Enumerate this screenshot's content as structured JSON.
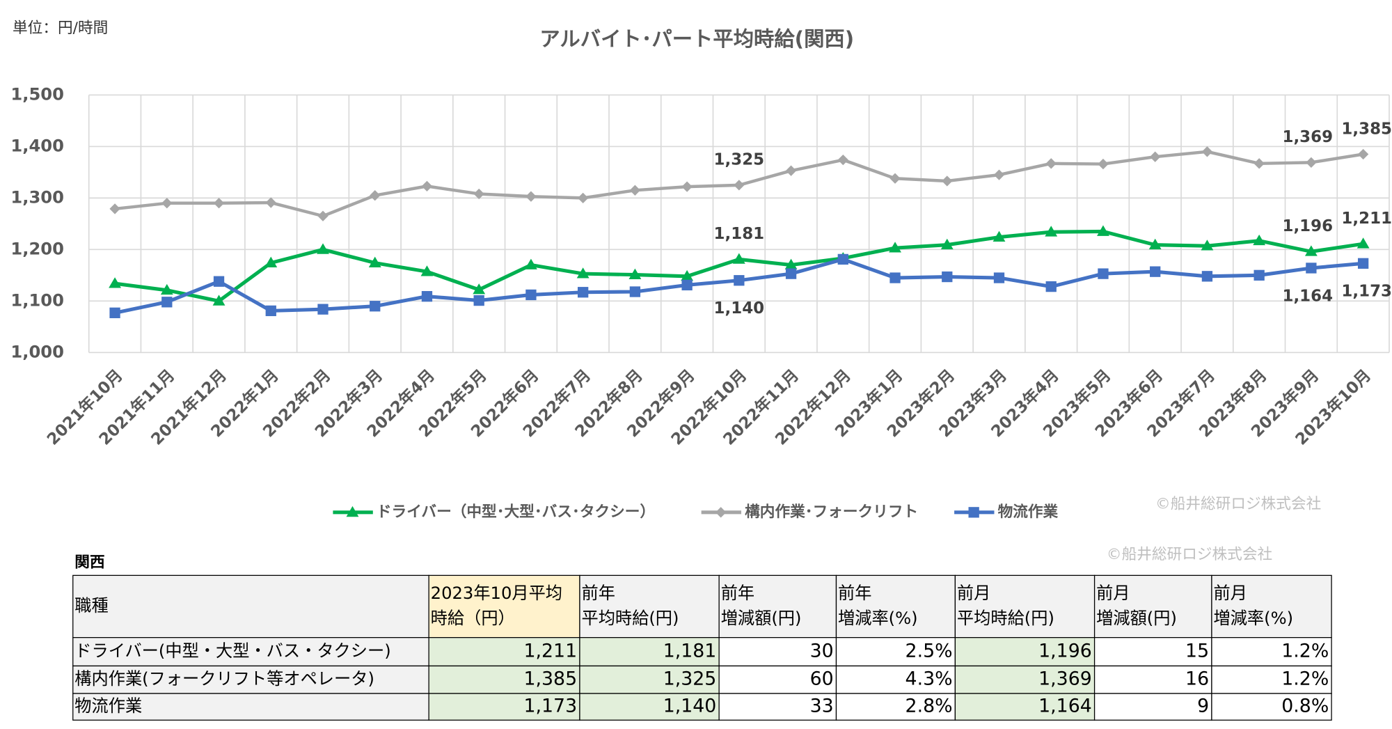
{
  "unit_note": "単位：円/時間",
  "chart_data": {
    "type": "line",
    "title": "アルバイト･パート平均時給(関西)",
    "categories": [
      "2021年10月",
      "2021年11月",
      "2021年12月",
      "2022年1月",
      "2022年2月",
      "2022年3月",
      "2022年4月",
      "2022年5月",
      "2022年6月",
      "2022年7月",
      "2022年8月",
      "2022年9月",
      "2022年10月",
      "2022年11月",
      "2022年12月",
      "2023年1月",
      "2023年2月",
      "2023年3月",
      "2023年4月",
      "2023年5月",
      "2023年6月",
      "2023年7月",
      "2023年8月",
      "2023年9月",
      "2023年10月"
    ],
    "ylim": [
      1000,
      1500
    ],
    "yticks": [
      {
        "value": 1000,
        "label": "1,000"
      },
      {
        "value": 1100,
        "label": "1,100"
      },
      {
        "value": 1200,
        "label": "1,200"
      },
      {
        "value": 1300,
        "label": "1,300"
      },
      {
        "value": 1400,
        "label": "1,400"
      },
      {
        "value": 1500,
        "label": "1,500"
      }
    ],
    "grid": true,
    "legend": "bottom",
    "series": [
      {
        "name": "ドライバー（中型･大型･バス･タクシー）",
        "color": "#00b050",
        "marker": "triangle",
        "values": [
          1134,
          1121,
          1100,
          1174,
          1200,
          1174,
          1157,
          1122,
          1170,
          1153,
          1151,
          1148,
          1181,
          1170,
          1183,
          1203,
          1209,
          1224,
          1234,
          1235,
          1209,
          1207,
          1217,
          1196,
          1211
        ],
        "value_labels": [
          null,
          null,
          null,
          null,
          null,
          null,
          null,
          null,
          null,
          null,
          null,
          null,
          "1,181",
          null,
          null,
          null,
          null,
          null,
          null,
          null,
          null,
          null,
          null,
          "1,196",
          "1,211"
        ]
      },
      {
        "name": "構内作業･フォークリフト",
        "color": "#a6a6a6",
        "marker": "diamond",
        "values": [
          1279,
          1290,
          1290,
          1291,
          1265,
          1305,
          1323,
          1308,
          1303,
          1300,
          1315,
          1322,
          1325,
          1353,
          1374,
          1338,
          1333,
          1345,
          1367,
          1366,
          1380,
          1390,
          1367,
          1369,
          1385
        ],
        "value_labels": [
          null,
          null,
          null,
          null,
          null,
          null,
          null,
          null,
          null,
          null,
          null,
          null,
          "1,325",
          null,
          null,
          null,
          null,
          null,
          null,
          null,
          null,
          null,
          null,
          "1,369",
          "1,385"
        ]
      },
      {
        "name": "物流作業",
        "color": "#4472c4",
        "marker": "square",
        "values": [
          1077,
          1098,
          1138,
          1081,
          1084,
          1090,
          1109,
          1101,
          1112,
          1117,
          1118,
          1131,
          1140,
          1153,
          1181,
          1145,
          1147,
          1145,
          1128,
          1153,
          1157,
          1148,
          1150,
          1164,
          1173
        ],
        "value_labels": [
          null,
          null,
          null,
          null,
          null,
          null,
          null,
          null,
          null,
          null,
          null,
          null,
          "1,140",
          null,
          null,
          null,
          null,
          null,
          null,
          null,
          null,
          null,
          null,
          "1,164",
          "1,173"
        ]
      }
    ]
  },
  "copyright": [
    "©船井総研ロジ株式会社",
    "©船井総研ロジ株式会社"
  ],
  "table": {
    "title": "関西",
    "header": [
      [
        "職種"
      ],
      [
        "2023年10月平均",
        "時給（円）"
      ],
      [
        "前年",
        "平均時給(円)"
      ],
      [
        "前年",
        "増減額(円)"
      ],
      [
        "前年",
        "増減率(%)"
      ],
      [
        "前月",
        "平均時給(円)"
      ],
      [
        "前月",
        "増減額(円)"
      ],
      [
        "前月",
        "増減率(%)"
      ]
    ],
    "rows": [
      [
        "ドライバー(中型・大型・バス・タクシー)",
        "1,211",
        "1,181",
        "30",
        "2.5%",
        "1,196",
        "15",
        "1.2%"
      ],
      [
        "構内作業(フォークリフト等オペレータ)",
        "1,385",
        "1,325",
        "60",
        "4.3%",
        "1,369",
        "16",
        "1.2%"
      ],
      [
        "物流作業",
        "1,173",
        "1,140",
        "33",
        "2.8%",
        "1,164",
        "9",
        "0.8%"
      ]
    ]
  }
}
